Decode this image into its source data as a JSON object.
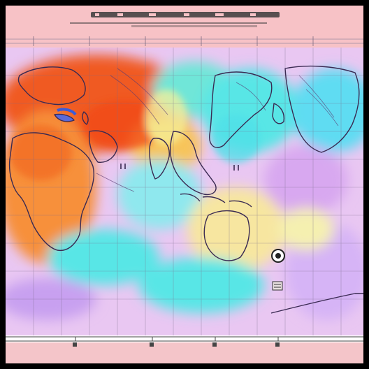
{
  "colors": {
    "frame_background": "#f7c2c6",
    "hot": "#f05a20",
    "warm": "#f7a24a",
    "neutral": "#f7f0a8",
    "cool": "#58e6e6",
    "cold": "#d9a3f0",
    "coastline": "#3a2a52"
  },
  "map": {
    "projection": "world-equirectangular",
    "graticule": "on",
    "markers": [
      "circle-marker",
      "square-marker"
    ]
  }
}
